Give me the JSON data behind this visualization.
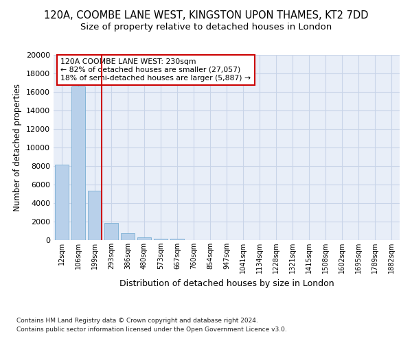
{
  "title1": "120A, COOMBE LANE WEST, KINGSTON UPON THAMES, KT2 7DD",
  "title2": "Size of property relative to detached houses in London",
  "xlabel": "Distribution of detached houses by size in London",
  "ylabel": "Number of detached properties",
  "categories": [
    "12sqm",
    "106sqm",
    "199sqm",
    "293sqm",
    "386sqm",
    "480sqm",
    "573sqm",
    "667sqm",
    "760sqm",
    "854sqm",
    "947sqm",
    "1041sqm",
    "1134sqm",
    "1228sqm",
    "1321sqm",
    "1415sqm",
    "1508sqm",
    "1602sqm",
    "1695sqm",
    "1789sqm",
    "1882sqm"
  ],
  "values": [
    8150,
    16600,
    5300,
    1820,
    720,
    290,
    180,
    140,
    0,
    0,
    0,
    0,
    0,
    0,
    0,
    0,
    0,
    0,
    0,
    0,
    0
  ],
  "bar_color": "#b8d0ea",
  "bar_edge_color": "#7aafd4",
  "vline_color": "#cc0000",
  "annotation_title": "120A COOMBE LANE WEST: 230sqm",
  "annotation_line1": "← 82% of detached houses are smaller (27,057)",
  "annotation_line2": "18% of semi-detached houses are larger (5,887) →",
  "annotation_box_facecolor": "#ffffff",
  "annotation_box_edgecolor": "#cc0000",
  "ylim": [
    0,
    20000
  ],
  "yticks": [
    0,
    2000,
    4000,
    6000,
    8000,
    10000,
    12000,
    14000,
    16000,
    18000,
    20000
  ],
  "grid_color": "#c8d4e8",
  "bg_color": "#e8eef8",
  "footer1": "Contains HM Land Registry data © Crown copyright and database right 2024.",
  "footer2": "Contains public sector information licensed under the Open Government Licence v3.0.",
  "title1_fontsize": 10.5,
  "title2_fontsize": 9.5,
  "xlabel_fontsize": 9,
  "ylabel_fontsize": 8.5,
  "tick_fontsize": 8,
  "xtick_fontsize": 7,
  "footer_fontsize": 6.5
}
